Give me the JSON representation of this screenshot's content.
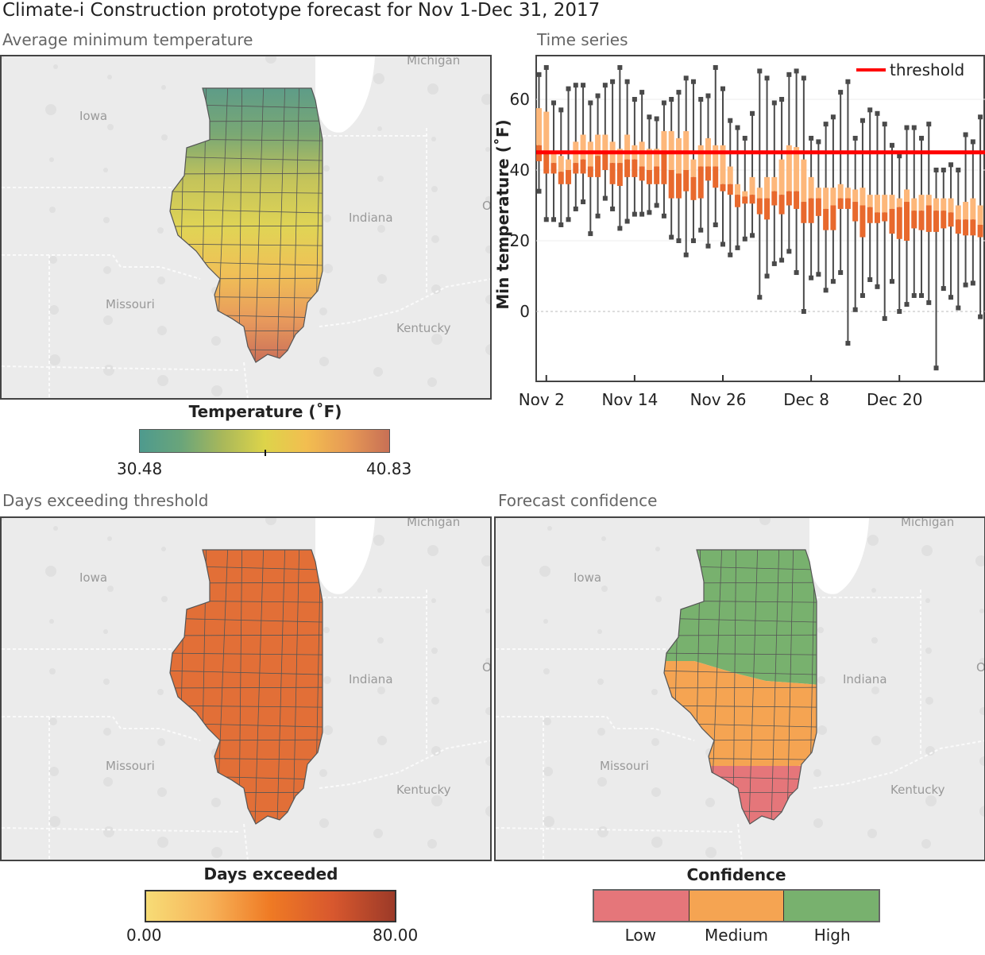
{
  "title": "Climate-i Construction prototype forecast for Nov 1-Dec 31, 2017",
  "panels": {
    "avg_min_temp": {
      "label": "Average minimum temperature"
    },
    "time_series": {
      "label": "Time series"
    },
    "days_exceeding": {
      "label": "Days exceeding threshold"
    },
    "confidence": {
      "label": "Forecast confidence"
    }
  },
  "map_labels": {
    "iowa": "Iowa",
    "indiana": "Indiana",
    "missouri": "Missouri",
    "kentucky": "Kentucky",
    "michigan": "Michigan",
    "ohio": "O"
  },
  "legends": {
    "temperature": {
      "title": "Temperature (˚F)",
      "min": "30.48",
      "max": "40.83",
      "colors": [
        "#4e9a8e",
        "#6aa57a",
        "#a9b85a",
        "#ddd44a",
        "#f2be50",
        "#e79a55",
        "#c87055"
      ]
    },
    "days": {
      "title": "Days exceeded",
      "min": "0.00",
      "max": "80.00",
      "colors": [
        "#f7dc76",
        "#f7b45a",
        "#ef7a24",
        "#d8582e",
        "#9c3a28"
      ]
    },
    "confidence": {
      "title": "Confidence",
      "items": [
        {
          "label": "Low",
          "color": "#e5767a"
        },
        {
          "label": "Medium",
          "color": "#f5a452"
        },
        {
          "label": "High",
          "color": "#78b16e"
        }
      ]
    }
  },
  "map_fill": {
    "days_exceeded": "#e26f37"
  },
  "chart_data": {
    "type": "box",
    "ylabel": "Min temperature (˚F)",
    "ylim": [
      -20,
      72
    ],
    "yticks": [
      0,
      20,
      40,
      60
    ],
    "xticks": [
      "Nov 2",
      "Nov 14",
      "Nov 26",
      "Dec 8",
      "Dec 20"
    ],
    "threshold": {
      "label": "threshold",
      "value": 45,
      "color": "#ff0000"
    },
    "colors": {
      "upper_box": "#fdb77a",
      "lower_box": "#e8692d",
      "whisker": "#4a4a4a"
    },
    "box_fields": [
      "date",
      "min",
      "q1",
      "median",
      "q3",
      "max"
    ],
    "boxes": [
      [
        "Nov 1",
        34,
        42.5,
        47,
        57.5,
        67
      ],
      [
        "Nov 2",
        26,
        39,
        45,
        56.5,
        69
      ],
      [
        "Nov 3",
        26,
        39,
        42,
        45,
        59
      ],
      [
        "Nov 4",
        24.5,
        36,
        39.5,
        44,
        57
      ],
      [
        "Nov 5",
        26,
        36,
        40,
        43,
        63
      ],
      [
        "Nov 6",
        29,
        39,
        42,
        48,
        64
      ],
      [
        "Nov 7",
        31,
        39,
        43,
        50,
        64
      ],
      [
        "Nov 8",
        22,
        38,
        41,
        48,
        59
      ],
      [
        "Nov 9",
        27,
        38,
        44,
        50,
        61
      ],
      [
        "Nov 10",
        32,
        40,
        45,
        50,
        64
      ],
      [
        "Nov 11",
        29,
        36,
        42,
        48,
        65
      ],
      [
        "Nov 12",
        23.5,
        35.5,
        42,
        46,
        69
      ],
      [
        "Nov 13",
        25.5,
        38,
        43,
        50,
        65
      ],
      [
        "Nov 14",
        27.5,
        38,
        43,
        47,
        60
      ],
      [
        "Nov 15",
        27.5,
        37,
        41,
        48,
        62
      ],
      [
        "Nov 16",
        28,
        36,
        40,
        46,
        55
      ],
      [
        "Nov 17",
        30,
        36,
        41,
        46,
        54.5
      ],
      [
        "Nov 18",
        27,
        36,
        45,
        51,
        59
      ],
      [
        "Nov 19",
        21,
        32,
        40,
        51,
        60
      ],
      [
        "Nov 20",
        20,
        32,
        39,
        49,
        62
      ],
      [
        "Nov 21",
        16,
        34,
        40,
        51,
        66
      ],
      [
        "Nov 22",
        20,
        31.5,
        38,
        43,
        65
      ],
      [
        "Nov 23",
        23,
        32,
        41,
        47,
        60
      ],
      [
        "Nov 24",
        18.5,
        37,
        41,
        49,
        61
      ],
      [
        "Nov 25",
        24.5,
        35,
        41,
        47,
        69
      ],
      [
        "Nov 26",
        19,
        34,
        36,
        47,
        63
      ],
      [
        "Nov 27",
        16,
        33,
        36,
        41,
        54
      ],
      [
        "Nov 28",
        18,
        29.5,
        33,
        36,
        52
      ],
      [
        "Nov 29",
        20.5,
        30.5,
        32.5,
        34,
        49
      ],
      [
        "Nov 30",
        21.5,
        30.5,
        33,
        38,
        56
      ],
      [
        "Dec 1",
        4,
        27.5,
        32,
        35,
        68
      ],
      [
        "Dec 2",
        10,
        26,
        32,
        38,
        66
      ],
      [
        "Dec 3",
        13.5,
        30,
        34,
        38,
        59
      ],
      [
        "Dec 4",
        14.5,
        27.5,
        33,
        43,
        60
      ],
      [
        "Dec 5",
        17,
        30,
        34,
        47,
        67
      ],
      [
        "Dec 6",
        11,
        29,
        34,
        46.5,
        68
      ],
      [
        "Dec 7",
        0,
        25,
        31,
        43,
        66
      ],
      [
        "Dec 8",
        9.5,
        25,
        32,
        38,
        49
      ],
      [
        "Dec 9",
        10.5,
        27,
        32,
        35,
        48
      ],
      [
        "Dec 10",
        6,
        23,
        29,
        35,
        53
      ],
      [
        "Dec 11",
        8.5,
        23,
        30,
        35,
        55
      ],
      [
        "Dec 12",
        11,
        29,
        32,
        36,
        62
      ],
      [
        "Dec 13",
        -9,
        29,
        32,
        35,
        65
      ],
      [
        "Dec 14",
        0.5,
        25.5,
        31,
        34.5,
        49
      ],
      [
        "Dec 15",
        4.5,
        21,
        30,
        35,
        54
      ],
      [
        "Dec 16",
        9,
        25,
        29.5,
        33,
        57
      ],
      [
        "Dec 17",
        7,
        25,
        28,
        33,
        56
      ],
      [
        "Dec 18",
        -2,
        25.5,
        28,
        33,
        53
      ],
      [
        "Dec 19",
        8.5,
        22,
        29,
        33,
        47
      ],
      [
        "Dec 20",
        0,
        20.5,
        29.5,
        32,
        44
      ],
      [
        "Dec 21",
        2,
        20,
        31,
        34.5,
        52
      ],
      [
        "Dec 22",
        4.5,
        23.5,
        28.5,
        32,
        52
      ],
      [
        "Dec 23",
        4.5,
        23,
        28.5,
        33,
        49
      ],
      [
        "Dec 24",
        2.5,
        22.5,
        30,
        33,
        53
      ],
      [
        "Dec 25",
        -16,
        22.5,
        28.5,
        32,
        40
      ],
      [
        "Dec 26",
        6.5,
        23.5,
        28.5,
        32,
        40
      ],
      [
        "Dec 27",
        4,
        24,
        28,
        32,
        41.5
      ],
      [
        "Dec 28",
        1,
        22,
        26,
        30,
        40
      ],
      [
        "Dec 29",
        7.5,
        21.5,
        26,
        31,
        50
      ],
      [
        "Dec 30",
        8,
        21.5,
        26,
        32,
        48
      ],
      [
        "Dec 31",
        -1.5,
        21,
        24.5,
        30,
        55
      ]
    ]
  }
}
